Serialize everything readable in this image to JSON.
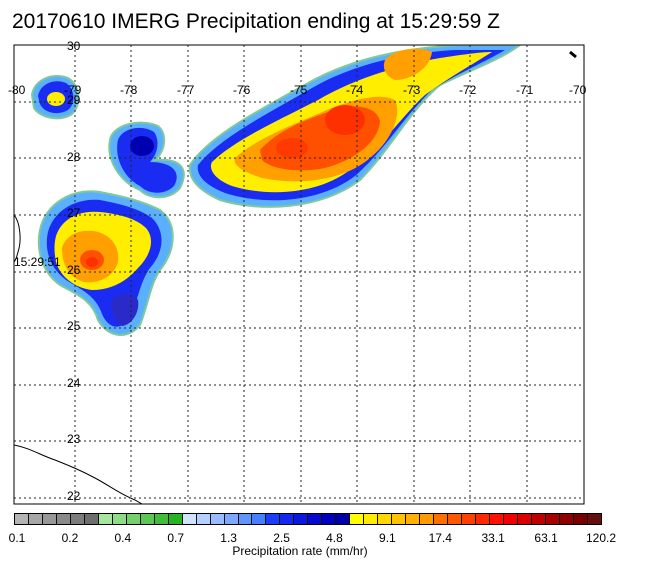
{
  "title": "20170610 IMERG Precipitation ending at 15:29:59 Z",
  "map": {
    "lon_labels": [
      "-80",
      "-79",
      "-78",
      "-77",
      "-76",
      "-75",
      "-74",
      "-73",
      "-72",
      "-71",
      "-70"
    ],
    "lat_labels": [
      "30",
      "29",
      "28",
      "27",
      "26",
      "25",
      "24",
      "23",
      "22"
    ],
    "time_marker": "15:29:51"
  },
  "colorbar": {
    "title": "Precipitation rate (mm/hr)",
    "labels": [
      "0.1",
      "0.2",
      "0.4",
      "0.7",
      "1.3",
      "2.5",
      "4.8",
      "9.1",
      "17.4",
      "33.1",
      "63.1",
      "120.2"
    ],
    "colors": [
      "#b4b4b4",
      "#a6a6a6",
      "#989898",
      "#8a8a8a",
      "#7c7c7c",
      "#6e6e6e",
      "#a8e6a0",
      "#8edc86",
      "#74d26c",
      "#5ac852",
      "#40be38",
      "#26b420",
      "#d0e4ff",
      "#b4d0ff",
      "#98bcff",
      "#7ca8ff",
      "#6094ff",
      "#4480ff",
      "#1c3cff",
      "#1428f0",
      "#0c18e0",
      "#0808d0",
      "#0000c0",
      "#0000a8",
      "#ffff00",
      "#ffec00",
      "#ffd800",
      "#ffc400",
      "#ffb000",
      "#ff9c00",
      "#ff7000",
      "#ff5800",
      "#ff4000",
      "#ff2800",
      "#ff1000",
      "#f00000",
      "#d80000",
      "#c00000",
      "#a80000",
      "#900000",
      "#7a0000",
      "#641010"
    ]
  }
}
